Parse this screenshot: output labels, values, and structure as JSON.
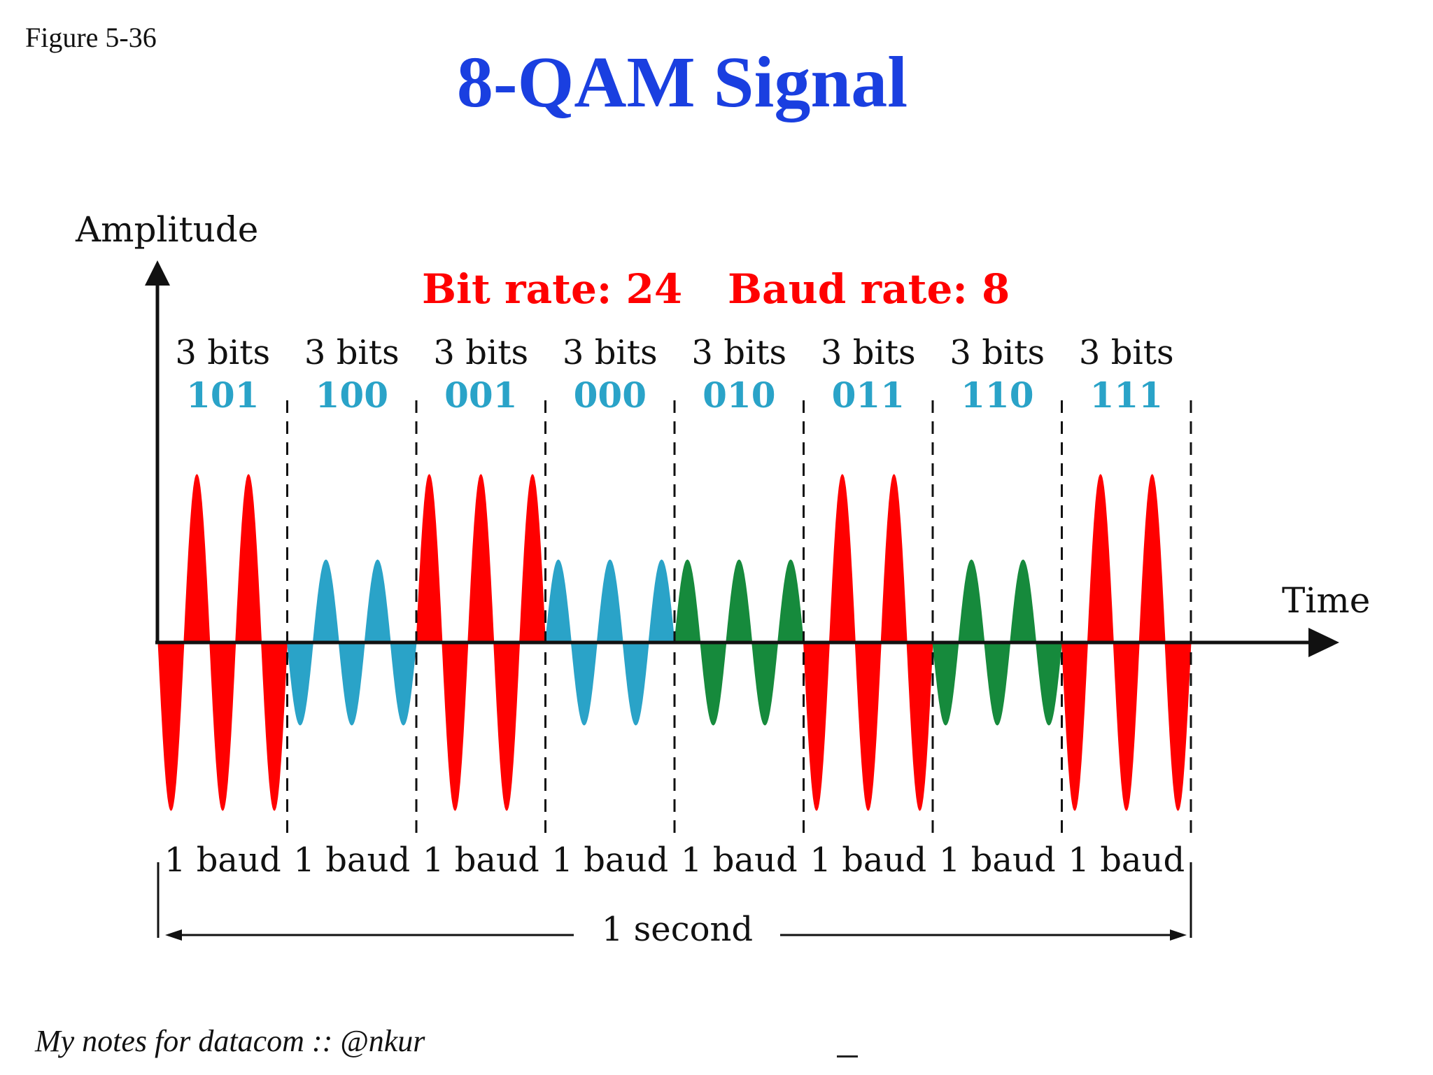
{
  "figure_label": "Figure 5-36",
  "title": "8-QAM Signal",
  "axes": {
    "y_label": "Amplitude",
    "x_label": "Time"
  },
  "rates": {
    "bit_rate": "Bit rate: 24",
    "baud_rate": "Baud rate: 8"
  },
  "bauds": [
    {
      "bits_label": "3 bits",
      "code": "101",
      "baud_label": "1 baud",
      "amplitude": "high",
      "phase_deg": 180,
      "color": "#ff0000"
    },
    {
      "bits_label": "3 bits",
      "code": "100",
      "baud_label": "1 baud",
      "amplitude": "low",
      "phase_deg": 180,
      "color": "#2aa3c8"
    },
    {
      "bits_label": "3 bits",
      "code": "001",
      "baud_label": "1 baud",
      "amplitude": "high",
      "phase_deg": 0,
      "color": "#ff0000"
    },
    {
      "bits_label": "3 bits",
      "code": "000",
      "baud_label": "1 baud",
      "amplitude": "low",
      "phase_deg": 0,
      "color": "#2aa3c8"
    },
    {
      "bits_label": "3 bits",
      "code": "010",
      "baud_label": "1 baud",
      "amplitude": "low",
      "phase_deg": 0,
      "color": "#168a3c"
    },
    {
      "bits_label": "3 bits",
      "code": "011",
      "baud_label": "1 baud",
      "amplitude": "high",
      "phase_deg": 180,
      "color": "#ff0000"
    },
    {
      "bits_label": "3 bits",
      "code": "110",
      "baud_label": "1 baud",
      "amplitude": "low",
      "phase_deg": 180,
      "color": "#168a3c"
    },
    {
      "bits_label": "3 bits",
      "code": "111",
      "baud_label": "1 baud",
      "amplitude": "high",
      "phase_deg": 180,
      "color": "#ff0000"
    }
  ],
  "duration_label": "1 second",
  "footer_note": "My notes for datacom :: @nkur"
}
